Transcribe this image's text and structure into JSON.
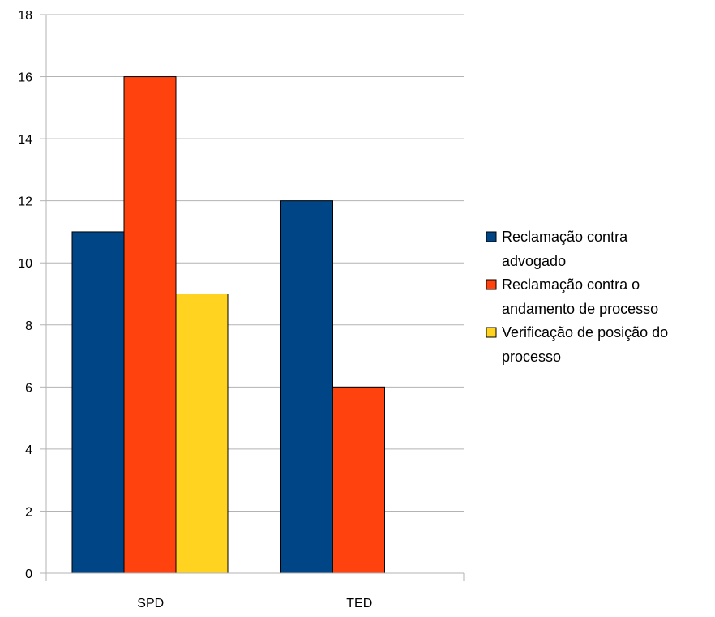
{
  "chart_data": {
    "type": "bar",
    "title": "",
    "xlabel": "",
    "ylabel": "",
    "categories": [
      "SPD",
      "TED"
    ],
    "series": [
      {
        "name": "Reclamação contra advogado",
        "values": [
          11,
          12
        ],
        "color": "#004586"
      },
      {
        "name": "Reclamação contra o andamento de processo",
        "values": [
          16,
          6
        ],
        "color": "#FF420E"
      },
      {
        "name": "Verificação de posição do processo",
        "values": [
          9,
          null
        ],
        "color": "#FFD320"
      }
    ],
    "ylim": [
      0,
      18
    ],
    "yticks": [
      "0",
      "2",
      "4",
      "6",
      "8",
      "10",
      "12",
      "14",
      "16",
      "18"
    ],
    "grid": true,
    "legend": {
      "position": "right",
      "entries": [
        {
          "lines": [
            "Reclamação contra",
            "advogado"
          ]
        },
        {
          "lines": [
            "Reclamação contra o",
            "andamento de processo"
          ]
        },
        {
          "lines": [
            "Verificação de posição do",
            "processo"
          ]
        }
      ]
    }
  }
}
